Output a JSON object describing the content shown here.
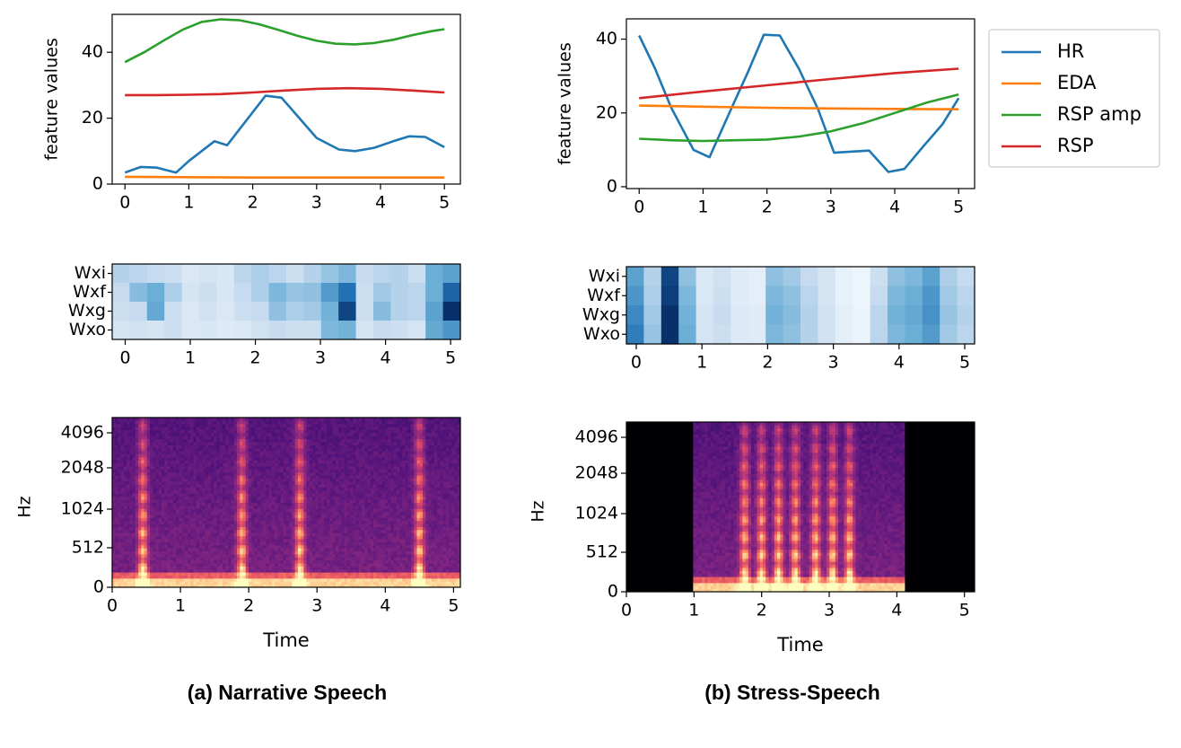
{
  "figure": {
    "caption_a": "(a) Narrative Speech",
    "caption_b": "(b) Stress-Speech"
  },
  "legend": {
    "entries": [
      {
        "name": "HR",
        "color": "#1f77b4"
      },
      {
        "name": "EDA",
        "color": "#ff7f0e"
      },
      {
        "name": "RSP amp",
        "color": "#2ca02c"
      },
      {
        "name": "RSP",
        "color": "#d62728"
      }
    ]
  },
  "chart_data": [
    {
      "id": "features_a",
      "type": "line",
      "panel": "a",
      "ylabel": "feature values",
      "xlim": [
        -0.2,
        5.25
      ],
      "ylim": [
        0,
        51.5
      ],
      "xticks": [
        0,
        1,
        2,
        3,
        4,
        5
      ],
      "yticks": [
        0,
        20,
        40
      ],
      "series": [
        {
          "name": "HR",
          "color": "#1f77b4",
          "x": [
            0,
            0.25,
            0.5,
            0.8,
            1.0,
            1.4,
            1.6,
            2.2,
            2.45,
            3.0,
            3.35,
            3.6,
            3.9,
            4.2,
            4.45,
            4.7,
            5.0
          ],
          "y": [
            3.5,
            5.2,
            5.0,
            3.5,
            7.0,
            13.0,
            11.8,
            26.8,
            26.2,
            14.0,
            10.5,
            10.0,
            11.0,
            13.0,
            14.5,
            14.3,
            11.2
          ]
        },
        {
          "name": "EDA",
          "color": "#ff7f0e",
          "x": [
            0,
            1,
            2,
            3,
            4,
            5
          ],
          "y": [
            2.2,
            2.1,
            2.0,
            2.0,
            2.0,
            2.0
          ]
        },
        {
          "name": "RSP amp",
          "color": "#2ca02c",
          "x": [
            0,
            0.3,
            0.6,
            0.9,
            1.2,
            1.5,
            1.8,
            2.1,
            2.4,
            2.7,
            3.0,
            3.3,
            3.6,
            3.9,
            4.2,
            4.5,
            4.8,
            5.0
          ],
          "y": [
            37.0,
            40.0,
            43.5,
            46.8,
            49.2,
            50.0,
            49.7,
            48.5,
            46.8,
            45.0,
            43.5,
            42.6,
            42.4,
            42.8,
            43.8,
            45.2,
            46.4,
            47.0
          ]
        },
        {
          "name": "RSP",
          "color": "#d62728",
          "x": [
            0,
            0.5,
            1,
            1.5,
            2,
            2.5,
            3,
            3.5,
            4,
            4.5,
            5
          ],
          "y": [
            27.0,
            27.0,
            27.1,
            27.3,
            27.8,
            28.4,
            28.9,
            29.1,
            28.9,
            28.4,
            27.8
          ]
        }
      ]
    },
    {
      "id": "features_b",
      "type": "line",
      "panel": "b",
      "ylabel": "feature values",
      "xlim": [
        -0.2,
        5.25
      ],
      "ylim": [
        -0.5,
        45.5
      ],
      "xticks": [
        0,
        1,
        2,
        3,
        4,
        5
      ],
      "yticks": [
        0,
        20,
        40
      ],
      "series": [
        {
          "name": "HR",
          "color": "#1f77b4",
          "x": [
            0,
            0.25,
            0.5,
            0.85,
            1.1,
            1.45,
            1.7,
            1.95,
            2.2,
            2.5,
            2.8,
            3.05,
            3.3,
            3.6,
            3.9,
            4.15,
            4.45,
            4.75,
            5.0
          ],
          "y": [
            41.0,
            32.0,
            21.5,
            10.0,
            8.0,
            21.5,
            31.0,
            41.2,
            41.0,
            32.0,
            21.0,
            9.2,
            9.5,
            9.8,
            4.0,
            4.8,
            11.0,
            17.0,
            24.0
          ]
        },
        {
          "name": "EDA",
          "color": "#ff7f0e",
          "x": [
            0,
            1,
            2,
            3,
            4,
            5
          ],
          "y": [
            22.0,
            21.7,
            21.4,
            21.2,
            21.1,
            21.0
          ]
        },
        {
          "name": "RSP amp",
          "color": "#2ca02c",
          "x": [
            0,
            0.5,
            1.0,
            1.5,
            2.0,
            2.5,
            3.0,
            3.5,
            4.0,
            4.5,
            5.0
          ],
          "y": [
            13.0,
            12.6,
            12.4,
            12.6,
            12.8,
            13.6,
            15.0,
            17.2,
            20.0,
            22.8,
            25.0
          ]
        },
        {
          "name": "RSP",
          "color": "#d62728",
          "x": [
            0,
            1,
            2,
            3,
            4,
            5
          ],
          "y": [
            24.0,
            25.8,
            27.5,
            29.2,
            30.8,
            32.0
          ]
        }
      ]
    },
    {
      "id": "weights_a",
      "type": "heatmap",
      "panel": "a",
      "rows": [
        "Wxi",
        "Wxf",
        "Wxg",
        "Wxo"
      ],
      "xlim": [
        -0.2,
        5.15
      ],
      "xticks": [
        0,
        1,
        2,
        3,
        4,
        5
      ],
      "values": [
        [
          0.3,
          0.28,
          0.25,
          0.22,
          0.15,
          0.18,
          0.16,
          0.28,
          0.32,
          0.28,
          0.22,
          0.3,
          0.38,
          0.45,
          0.25,
          0.28,
          0.3,
          0.22,
          0.5,
          0.55
        ],
        [
          0.25,
          0.42,
          0.5,
          0.32,
          0.18,
          0.22,
          0.16,
          0.25,
          0.32,
          0.45,
          0.38,
          0.4,
          0.58,
          0.75,
          0.22,
          0.35,
          0.3,
          0.28,
          0.5,
          0.8
        ],
        [
          0.22,
          0.25,
          0.52,
          0.22,
          0.15,
          0.2,
          0.15,
          0.22,
          0.25,
          0.4,
          0.32,
          0.35,
          0.48,
          0.92,
          0.22,
          0.42,
          0.3,
          0.28,
          0.55,
          1.0
        ],
        [
          0.18,
          0.2,
          0.18,
          0.22,
          0.15,
          0.16,
          0.14,
          0.15,
          0.2,
          0.25,
          0.22,
          0.22,
          0.45,
          0.48,
          0.18,
          0.25,
          0.22,
          0.18,
          0.52,
          0.6
        ]
      ]
    },
    {
      "id": "weights_b",
      "type": "heatmap",
      "panel": "b",
      "rows": [
        "Wxi",
        "Wxf",
        "Wxg",
        "Wxo"
      ],
      "xlim": [
        -0.15,
        5.15
      ],
      "xticks": [
        0,
        1,
        2,
        3,
        4,
        5
      ],
      "values": [
        [
          0.55,
          0.3,
          0.92,
          0.4,
          0.15,
          0.2,
          0.12,
          0.1,
          0.4,
          0.35,
          0.25,
          0.18,
          0.08,
          0.05,
          0.22,
          0.4,
          0.45,
          0.55,
          0.32,
          0.25
        ],
        [
          0.6,
          0.32,
          0.95,
          0.45,
          0.15,
          0.22,
          0.12,
          0.1,
          0.45,
          0.4,
          0.28,
          0.18,
          0.08,
          0.05,
          0.25,
          0.45,
          0.5,
          0.6,
          0.35,
          0.28
        ],
        [
          0.65,
          0.35,
          1.0,
          0.48,
          0.18,
          0.25,
          0.14,
          0.12,
          0.48,
          0.42,
          0.3,
          0.2,
          0.1,
          0.06,
          0.28,
          0.48,
          0.52,
          0.62,
          0.38,
          0.3
        ],
        [
          0.7,
          0.38,
          1.0,
          0.5,
          0.18,
          0.22,
          0.14,
          0.12,
          0.45,
          0.4,
          0.3,
          0.2,
          0.1,
          0.06,
          0.28,
          0.45,
          0.5,
          0.58,
          0.35,
          0.28
        ]
      ]
    },
    {
      "id": "spectrogram_a",
      "type": "heatmap",
      "panel": "a",
      "xlabel": "Time",
      "ylabel": "Hz",
      "xlim": [
        0,
        5.1
      ],
      "xticks": [
        0,
        1,
        2,
        3,
        4,
        5
      ],
      "yticks": [
        "0",
        "512",
        "1024",
        "2048",
        "4096"
      ],
      "silence_ranges": [],
      "bright_bursts": [
        0.45,
        1.9,
        2.75,
        4.5
      ]
    },
    {
      "id": "spectrogram_b",
      "type": "heatmap",
      "panel": "b",
      "xlabel": "Time",
      "ylabel": "Hz",
      "xlim": [
        0,
        5.15
      ],
      "xticks": [
        0,
        1,
        2,
        3,
        4,
        5
      ],
      "yticks": [
        "0",
        "512",
        "1024",
        "2048",
        "4096"
      ],
      "silence_ranges": [
        [
          0,
          1.0
        ],
        [
          4.1,
          5.15
        ]
      ],
      "bright_bursts": [
        1.75,
        2.0,
        2.25,
        2.5,
        2.8,
        3.05,
        3.3
      ]
    }
  ]
}
